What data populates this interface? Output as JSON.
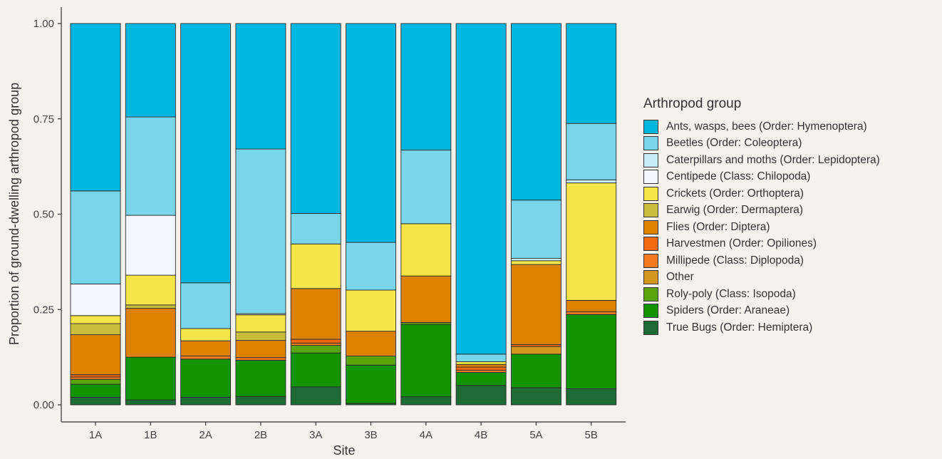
{
  "chart_data": {
    "type": "bar",
    "stacked": true,
    "normalized": true,
    "xlabel": "Site",
    "ylabel": "Proportion of ground-dwelling arthropod group",
    "ylim": [
      0,
      1
    ],
    "yticks": [
      "0.00",
      "0.25",
      "0.50",
      "0.75",
      "1.00"
    ],
    "legend_title": "Arthropod group",
    "legend_position": "right",
    "grid": false,
    "categories": [
      "1A",
      "1B",
      "2A",
      "2B",
      "3A",
      "3B",
      "4A",
      "4B",
      "5A",
      "5B"
    ],
    "series": [
      {
        "name": "True Bugs (Order: Hemiptera)",
        "color": "#1f6b35",
        "values": [
          0.02,
          0.013,
          0.02,
          0.022,
          0.047,
          0.004,
          0.021,
          0.051,
          0.045,
          0.042
        ]
      },
      {
        "name": "Spiders (Order: Araneae)",
        "color": "#129400",
        "values": [
          0.034,
          0.112,
          0.1,
          0.095,
          0.089,
          0.1,
          0.19,
          0.034,
          0.088,
          0.195
        ]
      },
      {
        "name": "Roly-poly (Class: Isopoda)",
        "color": "#59a30b",
        "values": [
          0.013,
          0.0,
          0.0,
          0.0,
          0.02,
          0.024,
          0.005,
          0.0,
          0.0,
          0.0
        ]
      },
      {
        "name": "Other",
        "color": "#d4961c",
        "values": [
          0.0,
          0.0,
          0.0,
          0.0,
          0.0,
          0.0,
          0.0,
          0.0,
          0.02,
          0.0
        ]
      },
      {
        "name": "Millipede (Class: Diplopoda)",
        "color": "#f47a1f",
        "values": [
          0.006,
          0.0,
          0.008,
          0.007,
          0.006,
          0.0,
          0.0,
          0.006,
          0.0,
          0.007
        ]
      },
      {
        "name": "Harvestmen (Order: Opiliones)",
        "color": "#f26a0d",
        "values": [
          0.006,
          0.0,
          0.0,
          0.0,
          0.01,
          0.0,
          0.0,
          0.008,
          0.005,
          0.0
        ]
      },
      {
        "name": "Flies (Order: Diptera)",
        "color": "#dc8200",
        "values": [
          0.105,
          0.128,
          0.04,
          0.045,
          0.133,
          0.065,
          0.122,
          0.007,
          0.21,
          0.03
        ]
      },
      {
        "name": "Earwig (Order: Dermaptera)",
        "color": "#c9bd3c",
        "values": [
          0.029,
          0.009,
          0.0,
          0.022,
          0.0,
          0.0,
          0.0,
          0.0,
          0.0,
          0.0
        ]
      },
      {
        "name": "Crickets (Order: Orthoptera)",
        "color": "#f6e548",
        "values": [
          0.021,
          0.078,
          0.032,
          0.045,
          0.117,
          0.108,
          0.137,
          0.007,
          0.01,
          0.308
        ]
      },
      {
        "name": "Centipede (Class: Chilopoda)",
        "color": "#f4f6fd",
        "values": [
          0.083,
          0.157,
          0.0,
          0.003,
          0.0,
          0.0,
          0.0,
          0.0,
          0.0,
          0.0
        ]
      },
      {
        "name": "Caterpillars and moths (Order: Lepidoptera)",
        "color": "#c5ecf7",
        "values": [
          0.0,
          0.0,
          0.0,
          0.0,
          0.0,
          0.0,
          0.0,
          0.0,
          0.006,
          0.008
        ]
      },
      {
        "name": "Beetles (Order: Coleoptera)",
        "color": "#79d6ea",
        "values": [
          0.244,
          0.258,
          0.12,
          0.432,
          0.08,
          0.125,
          0.193,
          0.02,
          0.153,
          0.148
        ]
      },
      {
        "name": "Ants, wasps, bees (Order: Hymenoptera)",
        "color": "#00b7e0",
        "values": [
          0.439,
          0.245,
          0.68,
          0.329,
          0.498,
          0.574,
          0.332,
          0.867,
          0.463,
          0.262
        ]
      }
    ],
    "legend_order": [
      "Ants, wasps, bees (Order: Hymenoptera)",
      "Beetles (Order: Coleoptera)",
      "Caterpillars and moths (Order: Lepidoptera)",
      "Centipede (Class: Chilopoda)",
      "Crickets (Order: Orthoptera)",
      "Earwig (Order: Dermaptera)",
      "Flies (Order: Diptera)",
      "Harvestmen (Order: Opiliones)",
      "Millipede (Class: Diplopoda)",
      "Other",
      "Roly-poly (Class: Isopoda)",
      "Spiders (Order: Araneae)",
      "True Bugs (Order: Hemiptera)"
    ]
  }
}
